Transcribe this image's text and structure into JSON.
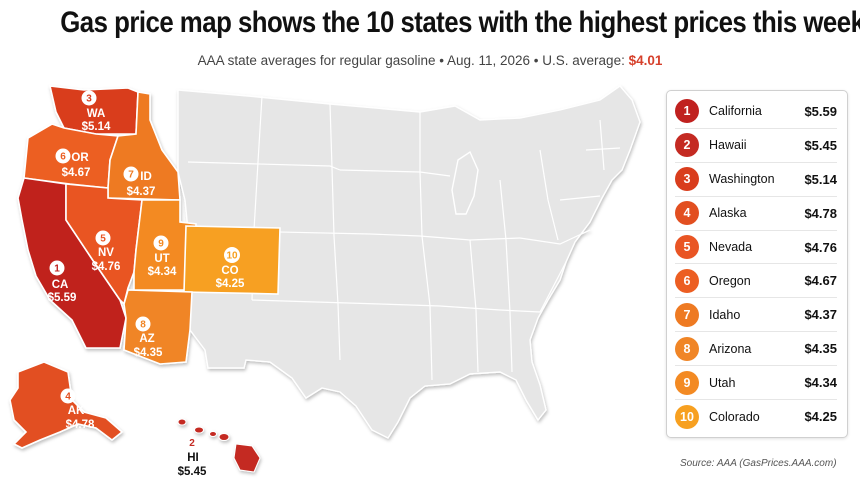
{
  "header": {
    "title": "Gas price map shows the 10 states with the highest prices this week",
    "subtitle_main": "AAA state averages for regular gasoline • Aug. 11, 2026 • U.S. average: ",
    "us_average": "$4.01"
  },
  "map_labels": {
    "WA": {
      "rank": "3",
      "abbr": "WA",
      "price": "$5.14"
    },
    "OR": {
      "rank": "6",
      "abbr": "OR",
      "price": "$4.67"
    },
    "ID": {
      "rank": "7",
      "abbr": "ID",
      "price": "$4.37"
    },
    "CA": {
      "rank": "1",
      "abbr": "CA",
      "price": "$5.59"
    },
    "NV": {
      "rank": "5",
      "abbr": "NV",
      "price": "$4.76"
    },
    "UT": {
      "rank": "9",
      "abbr": "UT",
      "price": "$4.34"
    },
    "CO": {
      "rank": "10",
      "abbr": "CO",
      "price": "$4.25"
    },
    "AZ": {
      "rank": "8",
      "abbr": "AZ",
      "price": "$4.35"
    },
    "AK": {
      "rank": "4",
      "abbr": "AK",
      "price": "$4.78"
    },
    "HI": {
      "rank": "2",
      "abbr": "HI",
      "price": "$5.45"
    }
  },
  "legend": {
    "items": [
      {
        "rank": "1",
        "state": "California",
        "price": "$5.59",
        "color": "#c0211f"
      },
      {
        "rank": "2",
        "state": "Hawaii",
        "price": "$5.45",
        "color": "#c42a22"
      },
      {
        "rank": "3",
        "state": "Washington",
        "price": "$5.14",
        "color": "#d93d1d"
      },
      {
        "rank": "4",
        "state": "Alaska",
        "price": "$4.78",
        "color": "#e24f20"
      },
      {
        "rank": "5",
        "state": "Nevada",
        "price": "$4.76",
        "color": "#e95524"
      },
      {
        "rank": "6",
        "state": "Oregon",
        "price": "$4.67",
        "color": "#ec5e22"
      },
      {
        "rank": "7",
        "state": "Idaho",
        "price": "$4.37",
        "color": "#ee7a22"
      },
      {
        "rank": "8",
        "state": "Arizona",
        "price": "$4.35",
        "color": "#f08526"
      },
      {
        "rank": "9",
        "state": "Utah",
        "price": "$4.34",
        "color": "#f38a23"
      },
      {
        "rank": "10",
        "state": "Colorado",
        "price": "$4.25",
        "color": "#f7a020"
      }
    ]
  },
  "source": "Source: AAA (GasPrices.AAA.com)",
  "colors": {
    "base_state": "#e6e6e6",
    "border": "#ffffff",
    "CA": "#c0211f",
    "HI": "#c42a22",
    "WA": "#d93d1d",
    "AK": "#e24f20",
    "NV": "#e95524",
    "OR": "#ec5e22",
    "ID": "#ee7a22",
    "AZ": "#f08526",
    "UT": "#f38a23",
    "CO": "#f7a020"
  }
}
